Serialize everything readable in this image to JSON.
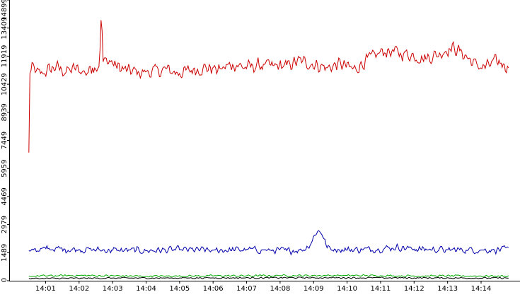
{
  "chart_data": {
    "type": "line",
    "title": "",
    "xlabel": "",
    "ylabel": "",
    "ylim": [
      0,
      14899
    ],
    "xlim_minutes": [
      0.5,
      14.85
    ],
    "y_ticks": [
      {
        "value": 0,
        "label": "0"
      },
      {
        "value": 1489,
        "label": "1489"
      },
      {
        "value": 2979,
        "label": "2979"
      },
      {
        "value": 4469,
        "label": "4469"
      },
      {
        "value": 5959,
        "label": "5959"
      },
      {
        "value": 7449,
        "label": "7449"
      },
      {
        "value": 8939,
        "label": "8939"
      },
      {
        "value": 10429,
        "label": "10429"
      },
      {
        "value": 11919,
        "label": "11919"
      },
      {
        "value": 13409,
        "label": "13409"
      },
      {
        "value": 14899,
        "label": "14899"
      }
    ],
    "x_ticks": [
      {
        "minute": 1,
        "label": "14:01"
      },
      {
        "minute": 2,
        "label": "14:02"
      },
      {
        "minute": 3,
        "label": "14:03"
      },
      {
        "minute": 4,
        "label": "14:04"
      },
      {
        "minute": 5,
        "label": "14:05"
      },
      {
        "minute": 6,
        "label": "14:06"
      },
      {
        "minute": 7,
        "label": "14:07"
      },
      {
        "minute": 8,
        "label": "14:08"
      },
      {
        "minute": 9,
        "label": "14:09"
      },
      {
        "minute": 10,
        "label": "14:10"
      },
      {
        "minute": 11,
        "label": "14:11"
      },
      {
        "minute": 12,
        "label": "14:12"
      },
      {
        "minute": 13,
        "label": "14:13"
      },
      {
        "minute": 14,
        "label": "14:14"
      }
    ],
    "grid": false,
    "legend": "none",
    "series": [
      {
        "color": "#cc0000",
        "noise": 450,
        "points": [
          [
            0.5,
            6800
          ],
          [
            0.52,
            11000
          ],
          [
            0.6,
            11300
          ],
          [
            0.8,
            10950
          ],
          [
            1.0,
            11100
          ],
          [
            1.3,
            11350
          ],
          [
            1.6,
            11100
          ],
          [
            1.9,
            11250
          ],
          [
            2.2,
            11050
          ],
          [
            2.4,
            11300
          ],
          [
            2.6,
            11500
          ],
          [
            2.65,
            13500
          ],
          [
            2.67,
            14899
          ],
          [
            2.7,
            11600
          ],
          [
            2.9,
            11700
          ],
          [
            3.1,
            11400
          ],
          [
            3.4,
            11150
          ],
          [
            3.8,
            11050
          ],
          [
            4.2,
            11100
          ],
          [
            4.6,
            11200
          ],
          [
            5.0,
            11000
          ],
          [
            5.4,
            11200
          ],
          [
            5.8,
            11300
          ],
          [
            6.2,
            11200
          ],
          [
            6.6,
            11500
          ],
          [
            7.0,
            11300
          ],
          [
            7.4,
            11450
          ],
          [
            7.8,
            11350
          ],
          [
            8.2,
            11450
          ],
          [
            8.6,
            11650
          ],
          [
            9.0,
            11500
          ],
          [
            9.4,
            11300
          ],
          [
            9.8,
            11500
          ],
          [
            10.2,
            11200
          ],
          [
            10.5,
            11600
          ],
          [
            10.8,
            11900
          ],
          [
            11.1,
            12200
          ],
          [
            11.5,
            12100
          ],
          [
            11.9,
            12000
          ],
          [
            12.3,
            11800
          ],
          [
            12.7,
            12000
          ],
          [
            13.0,
            12300
          ],
          [
            13.2,
            12350
          ],
          [
            13.5,
            12000
          ],
          [
            13.8,
            11500
          ],
          [
            14.1,
            11300
          ],
          [
            14.4,
            11600
          ],
          [
            14.6,
            11550
          ],
          [
            14.85,
            11300
          ]
        ]
      },
      {
        "color": "#0000aa",
        "noise": 230,
        "points": [
          [
            0.5,
            1600
          ],
          [
            1.0,
            1700
          ],
          [
            2.0,
            1650
          ],
          [
            3.0,
            1620
          ],
          [
            4.0,
            1600
          ],
          [
            5.0,
            1640
          ],
          [
            6.0,
            1620
          ],
          [
            7.0,
            1650
          ],
          [
            7.7,
            1620
          ],
          [
            8.2,
            1600
          ],
          [
            8.7,
            1650
          ],
          [
            8.9,
            1950
          ],
          [
            9.1,
            2650
          ],
          [
            9.25,
            2550
          ],
          [
            9.4,
            1750
          ],
          [
            9.7,
            1650
          ],
          [
            10.5,
            1650
          ],
          [
            11.0,
            1700
          ],
          [
            11.5,
            1780
          ],
          [
            12.0,
            1680
          ],
          [
            13.0,
            1650
          ],
          [
            14.0,
            1630
          ],
          [
            14.85,
            1650
          ]
        ]
      },
      {
        "color": "#00aa00",
        "noise": 60,
        "points": [
          [
            0.5,
            250
          ],
          [
            2.0,
            280
          ],
          [
            4.0,
            240
          ],
          [
            6.0,
            260
          ],
          [
            8.0,
            270
          ],
          [
            10.0,
            280
          ],
          [
            12.0,
            260
          ],
          [
            14.85,
            250
          ]
        ]
      },
      {
        "color": "#000000",
        "noise": 45,
        "points": [
          [
            0.5,
            120
          ],
          [
            3.0,
            140
          ],
          [
            6.0,
            150
          ],
          [
            9.0,
            160
          ],
          [
            12.0,
            150
          ],
          [
            14.85,
            140
          ]
        ]
      }
    ]
  }
}
